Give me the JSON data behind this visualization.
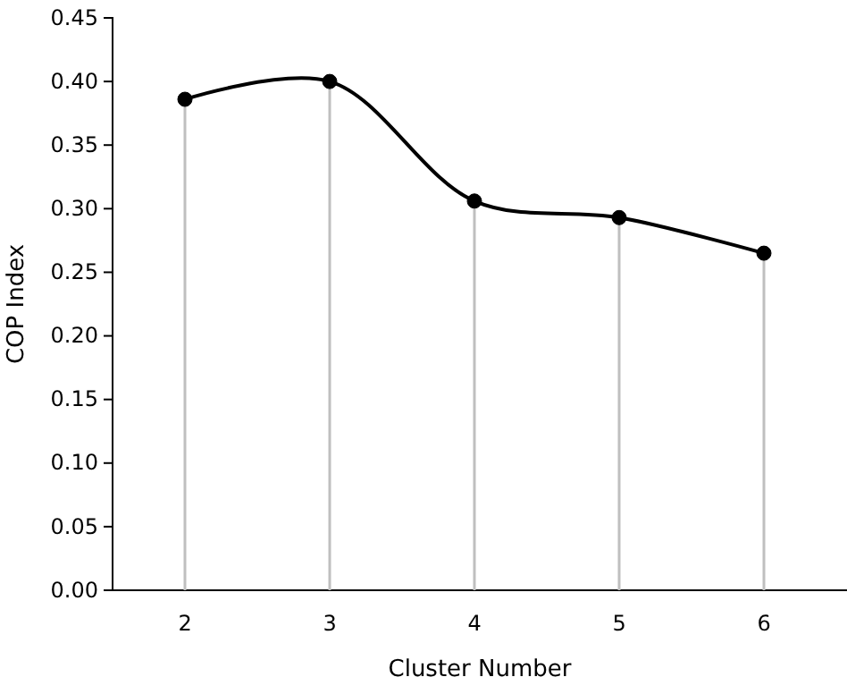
{
  "chart_data": {
    "type": "line",
    "xlabel": "Cluster Number",
    "ylabel": "COP Index",
    "categories": [
      "2",
      "3",
      "4",
      "5",
      "6"
    ],
    "series": [
      {
        "color": "#000000",
        "values": [
          0.386,
          0.4,
          0.306,
          0.293,
          0.265
        ]
      },
      {
        "type": "lollipop",
        "color": "#000000",
        "values": [
          0.386,
          0.4,
          0.306,
          0.293,
          0.265
        ]
      }
    ],
    "ylim": [
      0,
      0.45
    ],
    "yticks": [
      {
        "value": 0,
        "label": "0.00"
      },
      {
        "value": 0.05,
        "label": "0.05"
      },
      {
        "value": 0.1,
        "label": "0.10"
      },
      {
        "value": 0.15,
        "label": "0.15"
      },
      {
        "value": 0.2,
        "label": "0.20"
      },
      {
        "value": 0.25,
        "label": "0.25"
      },
      {
        "value": 0.3,
        "label": "0.30"
      },
      {
        "value": 0.35,
        "label": "0.35"
      },
      {
        "value": 0.4,
        "label": "0.40"
      },
      {
        "value": 0.45,
        "label": "0.45"
      }
    ],
    "line_style": "solid"
  }
}
